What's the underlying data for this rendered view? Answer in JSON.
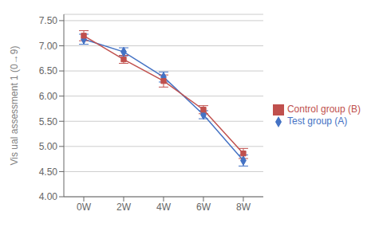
{
  "chart_data": {
    "type": "line",
    "categories": [
      "0W",
      "2W",
      "4W",
      "6W",
      "8W"
    ],
    "series": [
      {
        "name": "Test group (A)",
        "color": "#4472C4",
        "marker": "diamond",
        "values": [
          7.13,
          6.88,
          6.38,
          5.63,
          4.72
        ],
        "yerr": [
          0.1,
          0.08,
          0.1,
          0.08,
          0.11
        ]
      },
      {
        "name": "Control group (B)",
        "color": "#C0504D",
        "marker": "square",
        "values": [
          7.2,
          6.73,
          6.3,
          5.73,
          4.86
        ],
        "yerr": [
          0.1,
          0.08,
          0.12,
          0.08,
          0.1
        ]
      }
    ],
    "ylabel": "Vis ual assessment 1 (0→9)",
    "ylim": [
      4.0,
      7.625
    ],
    "yticks": [
      {
        "value": 4.0,
        "label": "4.00"
      },
      {
        "value": 4.5,
        "label": "4.50"
      },
      {
        "value": 5.0,
        "label": "5.00"
      },
      {
        "value": 5.5,
        "label": "5.50"
      },
      {
        "value": 6.0,
        "label": "6.00"
      },
      {
        "value": 6.5,
        "label": "6.50"
      },
      {
        "value": 7.0,
        "label": "7.00"
      },
      {
        "value": 7.5,
        "label": "7.50"
      }
    ],
    "grid": true,
    "legend": "right"
  }
}
